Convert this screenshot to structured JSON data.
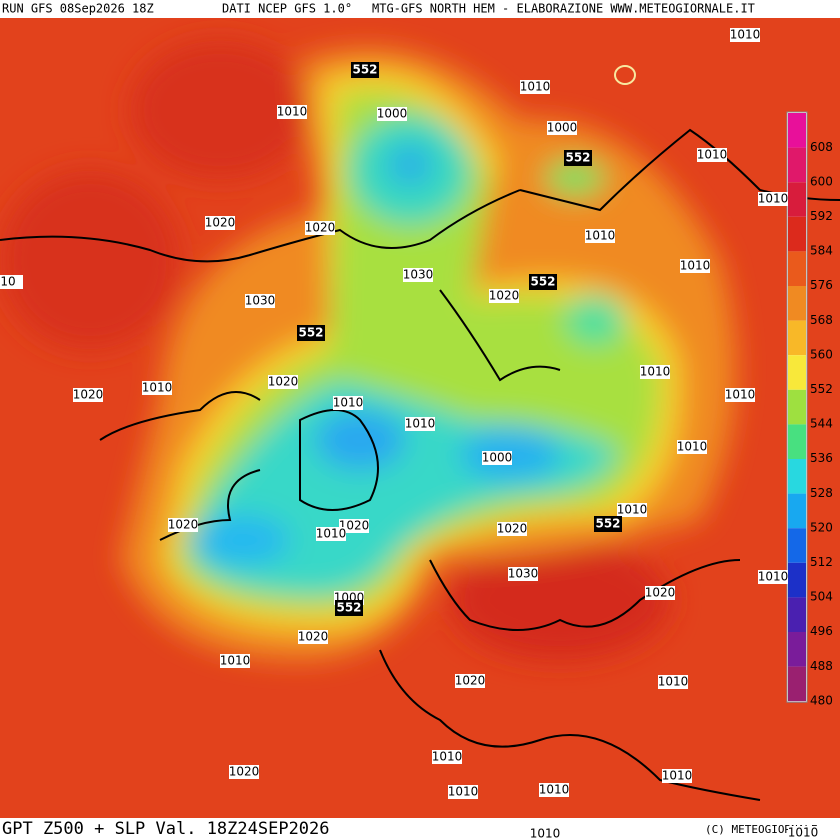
{
  "header": {
    "run": "RUN GFS 08Sep2026 18Z",
    "source": "DATI NCEP GFS 1.0°",
    "model": "MTG-GFS NORTH HEM - ELABORAZIONE WWW.METEOGIORNALE.IT"
  },
  "footer": {
    "title": "GPT Z500 + SLP Val. 18Z24SEP2026",
    "copyright": "(C) METEOGIORNALE"
  },
  "legend": {
    "levels": [
      608,
      600,
      592,
      584,
      576,
      568,
      560,
      552,
      544,
      536,
      528,
      520,
      512,
      504,
      496,
      488,
      480
    ],
    "colors": [
      "#e8109a",
      "#e0186a",
      "#d81c3c",
      "#dc2a1c",
      "#ea5a1c",
      "#f08a22",
      "#f8b828",
      "#f8e83a",
      "#9ee040",
      "#48e080",
      "#28d8e0",
      "#18a8f0",
      "#1468e8",
      "#1c30c8",
      "#4a20b0",
      "#7a1c9a",
      "#9a2070"
    ]
  },
  "contours": [
    "552",
    "1010",
    "1000",
    "1010",
    "1000",
    "552",
    "1010",
    "1010",
    "1010",
    "1020",
    "1020",
    "1030",
    "1020",
    "552",
    "1010",
    "1010",
    "1030",
    "552",
    "10",
    "1020",
    "1010",
    "1020",
    "1010",
    "1010",
    "1010",
    "1010",
    "1010",
    "1000",
    "1010",
    "552",
    "1020",
    "1020",
    "1010",
    "1020",
    "1030",
    "1010",
    "1000",
    "552",
    "1020",
    "1020",
    "1010",
    "1010",
    "1020",
    "1010",
    "1010",
    "1020",
    "1010",
    "1010",
    "1010",
    "1010"
  ]
}
